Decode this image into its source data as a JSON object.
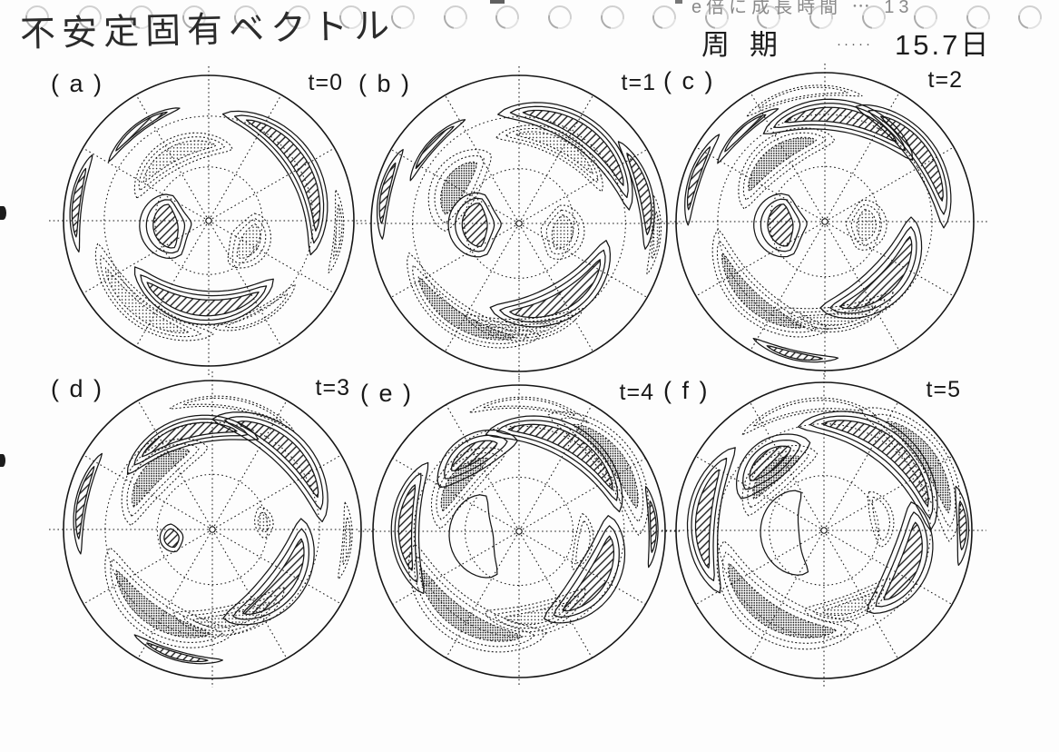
{
  "header": {
    "title": "不安定固有ベクトル",
    "growth_note": "e倍に成長時間 ⋯ 13",
    "period": {
      "label": "周期",
      "leader": "·····",
      "value": "15.7日"
    }
  },
  "chart_data": {
    "type": "contour_map_sequence",
    "projection": "polar_stereographic",
    "graticule": {
      "radial_interval_deg": 30,
      "latitude_circle_fracs": [
        0.37,
        0.72
      ]
    },
    "fill_styles": {
      "h": "hatched-solid-contour",
      "s": "stippled-dotted-contour"
    },
    "panels": [
      {
        "id": "a",
        "label": "( a )",
        "time": "t=0",
        "features": [
          {
            "t": "h",
            "az": 58,
            "r": 0.74,
            "sp": 75,
            "w": 0.1
          },
          {
            "t": "h",
            "az": 262,
            "r": 0.3,
            "sp": 60,
            "w": 0.17
          },
          {
            "t": "h",
            "az": 185,
            "r": 0.6,
            "sp": 80,
            "w": 0.11
          },
          {
            "t": "h",
            "az": 278,
            "r": 0.92,
            "sp": 30,
            "w": 0.05,
            "rg": 1
          },
          {
            "t": "h",
            "az": 323,
            "r": 0.8,
            "sp": 32,
            "w": 0.04,
            "rg": 1
          },
          {
            "t": "s",
            "az": 333,
            "r": 0.52,
            "sp": 65,
            "w": 0.1
          },
          {
            "t": "s",
            "az": 118,
            "r": 0.32,
            "sp": 48,
            "w": 0.13
          },
          {
            "t": "s",
            "az": 218,
            "r": 0.78,
            "sp": 55,
            "w": 0.09
          },
          {
            "t": "s",
            "az": 95,
            "r": 0.9,
            "sp": 24,
            "w": 0.04,
            "rg": 1
          },
          {
            "t": "s",
            "az": 152,
            "r": 0.74,
            "sp": 38,
            "w": 0.06,
            "rg": 1,
            "f": 0
          }
        ]
      },
      {
        "id": "b",
        "label": "( b )",
        "time": "t=1",
        "features": [
          {
            "t": "h",
            "az": 36,
            "r": 0.75,
            "sp": 68,
            "w": 0.1
          },
          {
            "t": "h",
            "az": 76,
            "r": 0.87,
            "sp": 38,
            "w": 0.07,
            "rg": 1
          },
          {
            "t": "h",
            "az": 268,
            "r": 0.3,
            "sp": 58,
            "w": 0.17
          },
          {
            "t": "h",
            "az": 150,
            "r": 0.6,
            "sp": 72,
            "w": 0.12
          },
          {
            "t": "h",
            "az": 283,
            "r": 0.93,
            "sp": 26,
            "w": 0.05,
            "rg": 1
          },
          {
            "t": "h",
            "az": 312,
            "r": 0.79,
            "sp": 28,
            "w": 0.04,
            "rg": 1
          },
          {
            "t": "s",
            "az": 301,
            "r": 0.5,
            "sp": 48,
            "w": 0.15,
            "d": 2
          },
          {
            "t": "s",
            "az": 27,
            "r": 0.6,
            "sp": 58,
            "w": 0.08
          },
          {
            "t": "s",
            "az": 102,
            "r": 0.3,
            "sp": 46,
            "w": 0.14
          },
          {
            "t": "s",
            "az": 212,
            "r": 0.77,
            "sp": 60,
            "w": 0.1,
            "d": 2
          },
          {
            "t": "s",
            "az": 177,
            "r": 0.72,
            "sp": 42,
            "w": 0.07
          },
          {
            "t": "s",
            "az": 95,
            "r": 0.93,
            "sp": 20,
            "w": 0.04,
            "rg": 1
          }
        ]
      },
      {
        "id": "c",
        "label": "( c )",
        "time": "t=2",
        "features": [
          {
            "t": "h",
            "az": 10,
            "r": 0.72,
            "sp": 64,
            "w": 0.1
          },
          {
            "t": "h",
            "az": 54,
            "r": 0.8,
            "sp": 52,
            "w": 0.09
          },
          {
            "t": "h",
            "az": 265,
            "r": 0.3,
            "sp": 56,
            "w": 0.17
          },
          {
            "t": "h",
            "az": 135,
            "r": 0.58,
            "sp": 70,
            "w": 0.13
          },
          {
            "t": "h",
            "az": 289,
            "r": 0.92,
            "sp": 28,
            "w": 0.05,
            "rg": 1
          },
          {
            "t": "h",
            "az": 318,
            "r": 0.82,
            "sp": 26,
            "w": 0.04,
            "rg": 1
          },
          {
            "t": "h",
            "az": 193,
            "r": 0.92,
            "sp": 24,
            "w": 0.04,
            "rg": 1
          },
          {
            "t": "s",
            "az": 323,
            "r": 0.55,
            "sp": 62,
            "w": 0.12,
            "d": 2
          },
          {
            "t": "s",
            "az": 95,
            "r": 0.28,
            "sp": 44,
            "w": 0.13
          },
          {
            "t": "s",
            "az": 222,
            "r": 0.72,
            "sp": 62,
            "w": 0.11,
            "d": 2
          },
          {
            "t": "s",
            "az": 172,
            "r": 0.66,
            "sp": 46,
            "w": 0.08
          },
          {
            "t": "s",
            "az": 350,
            "r": 0.88,
            "sp": 40,
            "w": 0.05,
            "rg": 1,
            "f": 0
          }
        ]
      },
      {
        "id": "d",
        "label": "( d )",
        "time": "t=3",
        "features": [
          {
            "t": "h",
            "az": 345,
            "r": 0.68,
            "sp": 58,
            "w": 0.09
          },
          {
            "t": "h",
            "az": 43,
            "r": 0.74,
            "sp": 60,
            "w": 0.11
          },
          {
            "t": "h",
            "az": 128,
            "r": 0.6,
            "sp": 64,
            "w": 0.13
          },
          {
            "t": "h",
            "az": 282,
            "r": 0.9,
            "sp": 32,
            "w": 0.05,
            "rg": 1
          },
          {
            "t": "h",
            "az": 258,
            "r": 0.28,
            "sp": 26,
            "w": 0.1,
            "rg": 1
          },
          {
            "t": "h",
            "az": 196,
            "r": 0.88,
            "sp": 28,
            "w": 0.04,
            "rg": 1
          },
          {
            "t": "s",
            "az": 315,
            "r": 0.55,
            "sp": 58,
            "w": 0.13,
            "d": 2
          },
          {
            "t": "s",
            "az": 214,
            "r": 0.7,
            "sp": 66,
            "w": 0.13,
            "d": 2
          },
          {
            "t": "s",
            "az": 167,
            "r": 0.62,
            "sp": 50,
            "w": 0.09
          },
          {
            "t": "s",
            "az": 82,
            "r": 0.35,
            "sp": 22,
            "w": 0.08,
            "rg": 1
          },
          {
            "t": "s",
            "az": 10,
            "r": 0.86,
            "sp": 46,
            "w": 0.05,
            "rg": 1,
            "f": 0
          },
          {
            "t": "s",
            "az": 95,
            "r": 0.91,
            "sp": 20,
            "w": 0.04,
            "rg": 1
          }
        ]
      },
      {
        "id": "e",
        "label": "( e )",
        "time": "t=4",
        "features": [
          {
            "t": "h",
            "az": 30,
            "r": 0.7,
            "sp": 72,
            "w": 0.11
          },
          {
            "t": "h",
            "az": 329,
            "r": 0.62,
            "sp": 34,
            "w": 0.12
          },
          {
            "t": "h",
            "az": 122,
            "r": 0.62,
            "sp": 58,
            "w": 0.14
          },
          {
            "t": "h",
            "az": 272,
            "r": 0.78,
            "sp": 44,
            "w": 0.09
          },
          {
            "t": "h",
            "az": 88,
            "r": 0.92,
            "sp": 22,
            "w": 0.04,
            "rg": 1
          },
          {
            "t": "h",
            "az": 262,
            "r": 0.33,
            "sp": 110,
            "w": 0.3,
            "rg": 0,
            "f": 0
          },
          {
            "t": "s",
            "az": 53,
            "r": 0.82,
            "sp": 52,
            "w": 0.12,
            "d": 2
          },
          {
            "t": "s",
            "az": 311,
            "r": 0.54,
            "sp": 52,
            "w": 0.12,
            "d": 2
          },
          {
            "t": "s",
            "az": 214,
            "r": 0.72,
            "sp": 72,
            "w": 0.14,
            "d": 2
          },
          {
            "t": "s",
            "az": 167,
            "r": 0.6,
            "sp": 46,
            "w": 0.09
          },
          {
            "t": "s",
            "az": 100,
            "r": 0.45,
            "sp": 38,
            "w": 0.08,
            "rg": 1,
            "f": 0
          },
          {
            "t": "s",
            "az": 5,
            "r": 0.88,
            "sp": 42,
            "w": 0.05,
            "rg": 1,
            "f": 0
          }
        ]
      },
      {
        "id": "f",
        "label": "( f )",
        "time": "t=5",
        "features": [
          {
            "t": "h",
            "az": 38,
            "r": 0.72,
            "sp": 78,
            "w": 0.12
          },
          {
            "t": "h",
            "az": 321,
            "r": 0.6,
            "sp": 34,
            "w": 0.13
          },
          {
            "t": "h",
            "az": 276,
            "r": 0.82,
            "sp": 48,
            "w": 0.1
          },
          {
            "t": "h",
            "az": 112,
            "r": 0.62,
            "sp": 54,
            "w": 0.13
          },
          {
            "t": "h",
            "az": 88,
            "r": 0.94,
            "sp": 20,
            "w": 0.05,
            "rg": 1
          },
          {
            "t": "h",
            "az": 265,
            "r": 0.3,
            "sp": 128,
            "w": 0.26,
            "rg": 0,
            "f": 0
          },
          {
            "t": "s",
            "az": 56,
            "r": 0.85,
            "sp": 52,
            "w": 0.12,
            "d": 2
          },
          {
            "t": "s",
            "az": 318,
            "r": 0.52,
            "sp": 48,
            "w": 0.12,
            "d": 2
          },
          {
            "t": "s",
            "az": 212,
            "r": 0.68,
            "sp": 78,
            "w": 0.15,
            "d": 2
          },
          {
            "t": "s",
            "az": 160,
            "r": 0.55,
            "sp": 42,
            "w": 0.08
          },
          {
            "t": "s",
            "az": 78,
            "r": 0.4,
            "sp": 44,
            "w": 0.1,
            "rg": 1,
            "f": 0
          },
          {
            "t": "s",
            "az": 352,
            "r": 0.85,
            "sp": 52,
            "w": 0.06,
            "rg": 1,
            "f": 0
          }
        ]
      }
    ]
  }
}
